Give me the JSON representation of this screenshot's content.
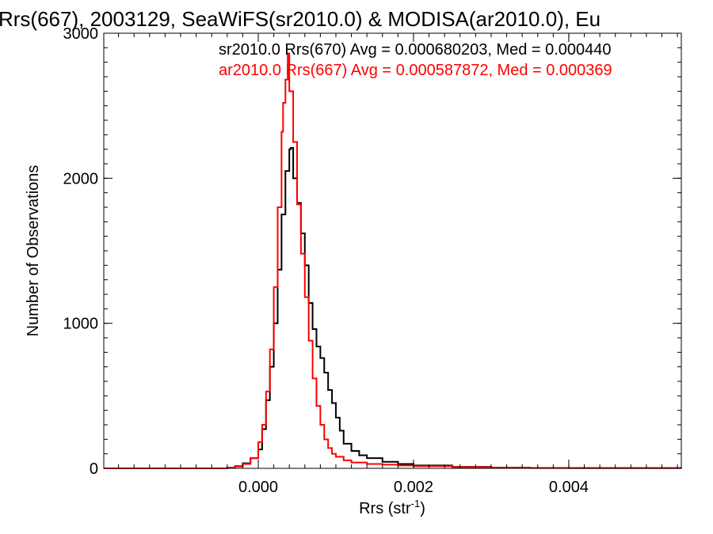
{
  "chart_data": {
    "type": "line",
    "title": "Rrs(667), 2003129, SeaWiFS(sr2010.0) & MODISA(ar2010.0), Eu",
    "xlabel": "Rrs (str",
    "xlabel_sup": "-1",
    "xlabel_close": ")",
    "ylabel": "Number of Observations",
    "xlim": [
      -0.00199,
      0.00545
    ],
    "ylim": [
      0,
      3000
    ],
    "xticks": [
      0.0,
      0.002,
      0.004
    ],
    "xtick_labels": [
      "0.000",
      "0.002",
      "0.004"
    ],
    "yticks": [
      0,
      1000,
      2000,
      3000
    ],
    "ytick_labels": [
      "0",
      "1000",
      "2000",
      "3000"
    ],
    "annotations": [
      {
        "text": "sr2010.0 Rrs(670) Avg = 0.000680203, Med = 0.000440",
        "color": "#000000"
      },
      {
        "text": "ar2010.0 Rrs(667) Avg = 0.000587872, Med = 0.000369",
        "color": "#ff0000"
      }
    ],
    "series": [
      {
        "color": "#000000",
        "style": "step",
        "points": [
          [
            -0.00199,
            0
          ],
          [
            -0.0007,
            0
          ],
          [
            -0.0004,
            5
          ],
          [
            -0.0003,
            15
          ],
          [
            -0.0002,
            35
          ],
          [
            -0.0001,
            70
          ],
          [
            0.0,
            130
          ],
          [
            5e-05,
            270
          ],
          [
            0.0001,
            470
          ],
          [
            0.00015,
            700
          ],
          [
            0.0002,
            1000
          ],
          [
            0.00025,
            1370
          ],
          [
            0.0003,
            1750
          ],
          [
            0.00035,
            2050
          ],
          [
            0.0004,
            2200
          ],
          [
            0.00042,
            2210
          ],
          [
            0.00045,
            2000
          ],
          [
            0.0005,
            1830
          ],
          [
            0.00055,
            1620
          ],
          [
            0.0006,
            1400
          ],
          [
            0.00065,
            1140
          ],
          [
            0.0007,
            960
          ],
          [
            0.00075,
            840
          ],
          [
            0.0008,
            760
          ],
          [
            0.00085,
            660
          ],
          [
            0.0009,
            540
          ],
          [
            0.00095,
            450
          ],
          [
            0.001,
            350
          ],
          [
            0.00105,
            260
          ],
          [
            0.0011,
            170
          ],
          [
            0.0012,
            120
          ],
          [
            0.0013,
            90
          ],
          [
            0.0014,
            70
          ],
          [
            0.0016,
            45
          ],
          [
            0.0018,
            30
          ],
          [
            0.002,
            20
          ],
          [
            0.0025,
            10
          ],
          [
            0.003,
            5
          ],
          [
            0.0035,
            3
          ],
          [
            0.004,
            2
          ],
          [
            0.00545,
            0
          ]
        ]
      },
      {
        "color": "#ff0000",
        "style": "step",
        "points": [
          [
            -0.00199,
            0
          ],
          [
            -0.0006,
            0
          ],
          [
            -0.0004,
            5
          ],
          [
            -0.0003,
            12
          ],
          [
            -0.0002,
            30
          ],
          [
            -0.0001,
            70
          ],
          [
            0.0,
            180
          ],
          [
            5e-05,
            300
          ],
          [
            0.0001,
            530
          ],
          [
            0.00015,
            820
          ],
          [
            0.0002,
            1250
          ],
          [
            0.00025,
            1800
          ],
          [
            0.0003,
            2320
          ],
          [
            0.00032,
            2520
          ],
          [
            0.00035,
            2680
          ],
          [
            0.00038,
            2860
          ],
          [
            0.0004,
            2600
          ],
          [
            0.00045,
            2250
          ],
          [
            0.0005,
            1820
          ],
          [
            0.00055,
            1480
          ],
          [
            0.0006,
            1180
          ],
          [
            0.00065,
            880
          ],
          [
            0.0007,
            620
          ],
          [
            0.00075,
            430
          ],
          [
            0.0008,
            300
          ],
          [
            0.00085,
            200
          ],
          [
            0.0009,
            140
          ],
          [
            0.00095,
            100
          ],
          [
            0.001,
            80
          ],
          [
            0.0011,
            55
          ],
          [
            0.0012,
            40
          ],
          [
            0.0014,
            30
          ],
          [
            0.0016,
            25
          ],
          [
            0.0018,
            20
          ],
          [
            0.002,
            15
          ],
          [
            0.0025,
            8
          ],
          [
            0.003,
            4
          ],
          [
            0.0035,
            2
          ],
          [
            0.00545,
            0
          ]
        ]
      }
    ]
  }
}
